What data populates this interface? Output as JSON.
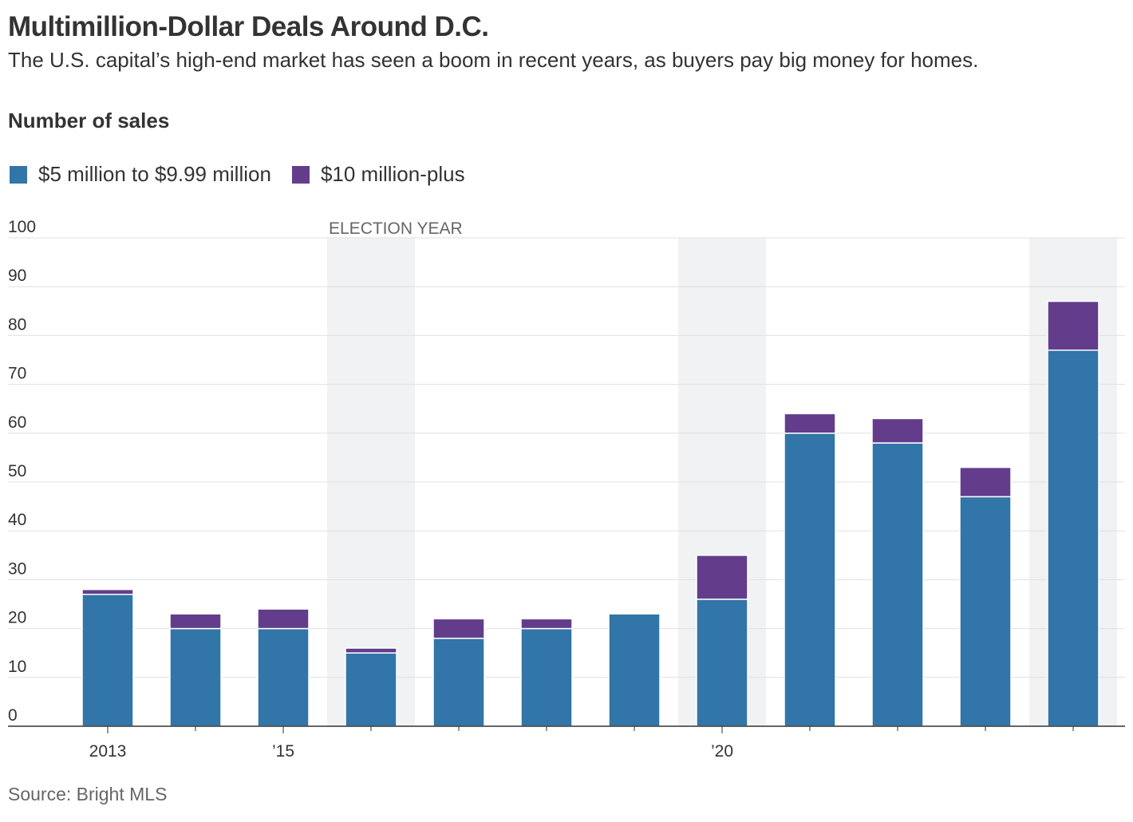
{
  "title": "Multimillion-Dollar Deals Around D.C.",
  "subtitle": "The U.S. capital’s high-end market has seen a boom in recent years, as buyers pay big money for homes.",
  "source": "Source: Bright MLS",
  "colors": {
    "series_low": "#3275a8",
    "series_high": "#633d8c",
    "election_band": "#f1f2f4",
    "grid": "#e0e0e0",
    "axis": "#333333"
  },
  "chart_data": {
    "type": "bar",
    "stacked": true,
    "ylabel": "Number of sales",
    "ylim": [
      0,
      100
    ],
    "yticks": [
      0,
      10,
      20,
      30,
      40,
      50,
      60,
      70,
      80,
      90,
      100
    ],
    "grid": true,
    "legend_position": "top-left",
    "categories": [
      "2013",
      "2014",
      "2015",
      "2016",
      "2017",
      "2018",
      "2019",
      "2020",
      "2021",
      "2022",
      "2023",
      "2024"
    ],
    "xtick_labels": [
      "2013",
      "",
      "’15",
      "",
      "",
      "",
      "",
      "’20",
      "",
      "",
      "",
      ""
    ],
    "series": [
      {
        "name": "$5 million to $9.99 million",
        "color": "#3275a8",
        "values": [
          27,
          20,
          20,
          15,
          18,
          20,
          23,
          26,
          60,
          58,
          47,
          77
        ]
      },
      {
        "name": "$10 million-plus",
        "color": "#633d8c",
        "values": [
          1,
          3,
          4,
          1,
          4,
          2,
          0,
          9,
          4,
          5,
          6,
          10
        ]
      }
    ],
    "highlight_bands": [
      {
        "category": "2016",
        "label": "ELECTION YEAR"
      },
      {
        "category": "2020",
        "label": ""
      },
      {
        "category": "2024",
        "label": ""
      }
    ]
  }
}
